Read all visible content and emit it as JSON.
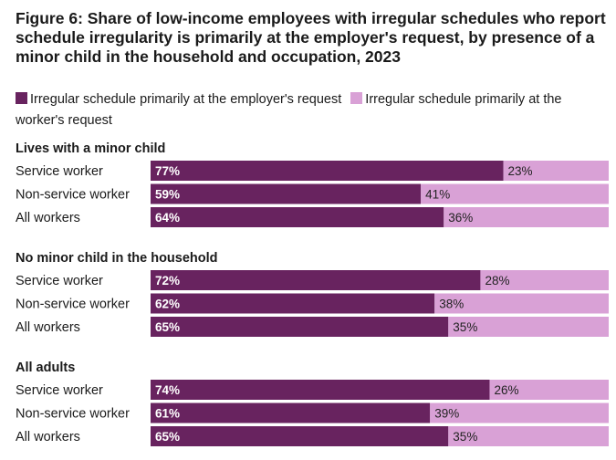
{
  "title": "Figure 6: Share of low-income employees with irregular schedules who report schedule irregularity is primarily at the employer's request, by presence of a minor child in the household and occupation, 2023",
  "legend": {
    "employer": "Irregular schedule primarily at the employer's request",
    "worker": "Irregular schedule primarily at the worker's request"
  },
  "colors": {
    "employer": "#68235f",
    "worker": "#d9a1d6"
  },
  "chart_data": {
    "type": "bar",
    "orientation": "horizontal-stacked-100",
    "title": "Figure 6: Share of low-income employees with irregular schedules who report schedule irregularity is primarily at the employer's request, by presence of a minor child in the household and occupation, 2023",
    "series_names": [
      "Irregular schedule primarily at the employer's request",
      "Irregular schedule primarily at the worker's request"
    ],
    "xlim": [
      0,
      100
    ],
    "groups": [
      {
        "name": "Lives with a minor child",
        "rows": [
          {
            "label": "Service worker",
            "employer": 77,
            "worker": 23
          },
          {
            "label": "Non-service worker",
            "employer": 59,
            "worker": 41
          },
          {
            "label": "All workers",
            "employer": 64,
            "worker": 36
          }
        ]
      },
      {
        "name": "No minor child in the household",
        "rows": [
          {
            "label": "Service worker",
            "employer": 72,
            "worker": 28
          },
          {
            "label": "Non-service worker",
            "employer": 62,
            "worker": 38
          },
          {
            "label": "All workers",
            "employer": 65,
            "worker": 35
          }
        ]
      },
      {
        "name": "All adults",
        "rows": [
          {
            "label": "Service worker",
            "employer": 74,
            "worker": 26
          },
          {
            "label": "Non-service worker",
            "employer": 61,
            "worker": 39
          },
          {
            "label": "All workers",
            "employer": 65,
            "worker": 35
          }
        ]
      }
    ]
  }
}
